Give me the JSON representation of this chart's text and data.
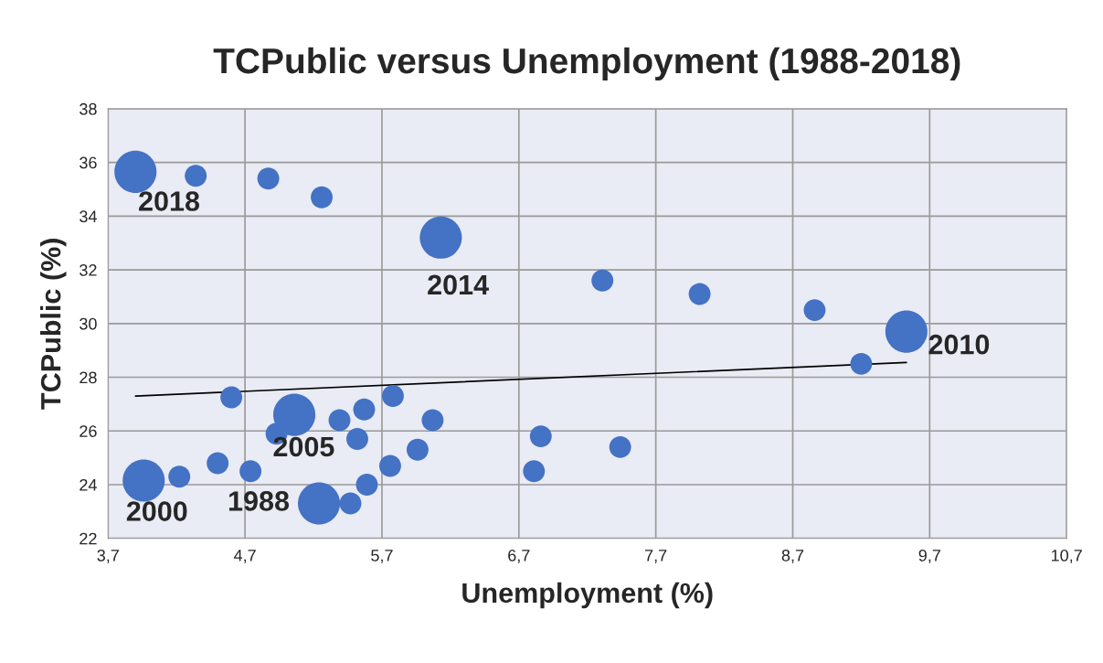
{
  "chart_data": {
    "type": "bubble",
    "title": "TCPublic versus Unemployment (1988-2018)",
    "xlabel": "Unemployment (%)",
    "ylabel": "TCPublic (%)",
    "series": [
      {
        "color": "#4472c4",
        "x": [
          3.9,
          4.34,
          4.87,
          5.26,
          6.13,
          7.31,
          8.02,
          8.86,
          9.53,
          9.2,
          4.6,
          5.78,
          5.06,
          5.57,
          5.39,
          6.07,
          4.93,
          5.52,
          5.96,
          6.86,
          7.44,
          4.5,
          4.74,
          4.22,
          5.76,
          6.81,
          5.59,
          5.47,
          3.96,
          5.24
        ],
        "values": [
          35.65,
          35.5,
          35.4,
          34.7,
          33.2,
          31.6,
          31.1,
          30.5,
          29.7,
          28.5,
          27.25,
          27.3,
          26.6,
          26.8,
          26.4,
          26.4,
          25.9,
          25.7,
          25.3,
          25.8,
          25.4,
          24.8,
          24.5,
          24.3,
          24.7,
          24.5,
          24.0,
          23.3,
          24.15,
          23.3
        ],
        "sizes": [
          1,
          0.27,
          0.27,
          0.27,
          1,
          0.27,
          0.27,
          0.27,
          1,
          0.27,
          0.27,
          0.27,
          1,
          0.27,
          0.27,
          0.27,
          0.27,
          0.27,
          0.27,
          0.27,
          0.27,
          0.27,
          0.27,
          0.27,
          0.27,
          0.27,
          0.27,
          0.27,
          1,
          1
        ]
      },
      {
        "type": "line",
        "color": "#000000",
        "x": [
          3.9,
          9.53
        ],
        "values": [
          27.3,
          28.55
        ]
      }
    ],
    "annotations": [
      {
        "text": "2018",
        "x": 3.9,
        "y": 35.65
      },
      {
        "text": "2014",
        "x": 6.13,
        "y": 33.2
      },
      {
        "text": "2010",
        "x": 9.53,
        "y": 29.7
      },
      {
        "text": "2005",
        "x": 5.06,
        "y": 26.6
      },
      {
        "text": "2000",
        "x": 3.96,
        "y": 24.15
      },
      {
        "text": "1988",
        "x": 5.24,
        "y": 23.3
      }
    ],
    "xlim": [
      3.7,
      10.7
    ],
    "xticks": [
      {
        "value": 3.7,
        "label": "3,7"
      },
      {
        "value": 4.7,
        "label": "4,7"
      },
      {
        "value": 5.7,
        "label": "5,7"
      },
      {
        "value": 6.7,
        "label": "6,7"
      },
      {
        "value": 7.7,
        "label": "7,7"
      },
      {
        "value": 8.7,
        "label": "8,7"
      },
      {
        "value": 9.7,
        "label": "9,7"
      },
      {
        "value": 10.7,
        "label": "10,7"
      }
    ],
    "ylim": [
      22,
      38
    ],
    "yticks": [
      22,
      24,
      26,
      28,
      30,
      32,
      34,
      36,
      38
    ],
    "grid": true
  }
}
